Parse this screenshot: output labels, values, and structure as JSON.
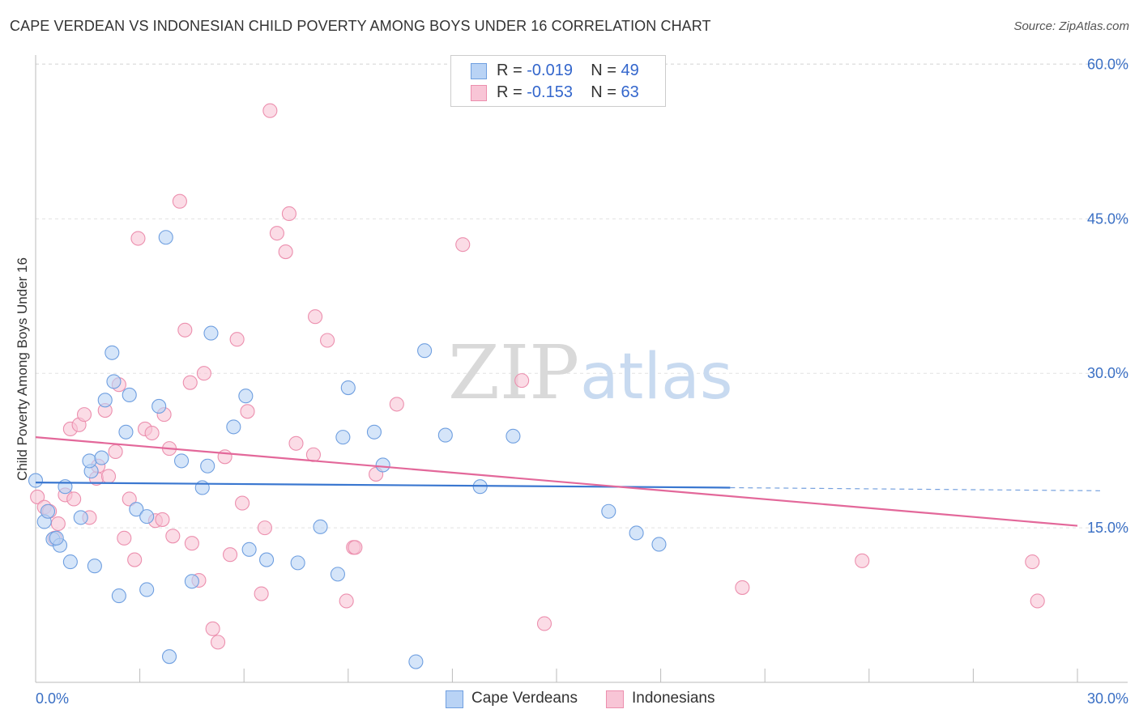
{
  "title": "CAPE VERDEAN VS INDONESIAN CHILD POVERTY AMONG BOYS UNDER 16 CORRELATION CHART",
  "source": "Source: ZipAtlas.com",
  "watermark": {
    "zip": "ZIP",
    "atlas": "atlas"
  },
  "colors": {
    "blue_fill": "#b9d3f5",
    "blue_stroke": "#6f9fe0",
    "blue_line": "#3a77d0",
    "pink_fill": "#f8c5d6",
    "pink_stroke": "#ec8fae",
    "pink_line": "#e3689a",
    "tick_text": "#3a6fc4"
  },
  "legend": [
    {
      "r_label": "R = ",
      "r_value": "-0.019",
      "n_label": "N = ",
      "n_value": "49"
    },
    {
      "r_label": "R = ",
      "r_value": "-0.153",
      "n_label": "N = ",
      "n_value": "63"
    }
  ],
  "bottom_legend": [
    "Cape Verdeans",
    "Indonesians"
  ],
  "chart_data": {
    "type": "scatter",
    "title": "CAPE VERDEAN VS INDONESIAN CHILD POVERTY AMONG BOYS UNDER 16 CORRELATION CHART",
    "xlabel": "",
    "ylabel": "Child Poverty Among Boys Under 16",
    "xlim": [
      0,
      30
    ],
    "ylim": [
      0,
      60
    ],
    "x_tick_labels": [
      "0.0%",
      "30.0%"
    ],
    "y_ticks": [
      15,
      30,
      45,
      60
    ],
    "y_tick_labels": [
      "15.0%",
      "30.0%",
      "45.0%",
      "60.0%"
    ],
    "grid": true,
    "legend_position": "top-center",
    "series": [
      {
        "name": "Cape Verdeans",
        "r": -0.019,
        "n": 49,
        "trend": {
          "x0": 0,
          "y0": 19.4,
          "x1": 20.0,
          "y1": 18.9,
          "dashed_to_x": 30,
          "dashed_to_y": 18.6
        },
        "points": [
          [
            0.0,
            19.6
          ],
          [
            0.25,
            15.6
          ],
          [
            0.35,
            16.6
          ],
          [
            0.5,
            13.9
          ],
          [
            0.7,
            13.3
          ],
          [
            0.6,
            14.0
          ],
          [
            0.85,
            19.0
          ],
          [
            1.0,
            11.7
          ],
          [
            1.3,
            16.0
          ],
          [
            1.6,
            20.5
          ],
          [
            1.7,
            11.3
          ],
          [
            1.55,
            21.5
          ],
          [
            1.9,
            21.8
          ],
          [
            2.0,
            27.4
          ],
          [
            2.2,
            32.0
          ],
          [
            2.25,
            29.2
          ],
          [
            2.4,
            8.4
          ],
          [
            2.6,
            24.3
          ],
          [
            2.7,
            27.9
          ],
          [
            2.9,
            16.8
          ],
          [
            3.2,
            16.1
          ],
          [
            3.2,
            9.0
          ],
          [
            3.55,
            26.8
          ],
          [
            3.75,
            43.2
          ],
          [
            3.85,
            2.5
          ],
          [
            4.2,
            21.5
          ],
          [
            4.5,
            9.8
          ],
          [
            4.8,
            18.9
          ],
          [
            4.95,
            21.0
          ],
          [
            5.05,
            33.9
          ],
          [
            5.7,
            24.8
          ],
          [
            6.15,
            12.9
          ],
          [
            6.05,
            27.8
          ],
          [
            6.65,
            11.9
          ],
          [
            7.55,
            11.6
          ],
          [
            8.2,
            15.1
          ],
          [
            8.7,
            10.5
          ],
          [
            8.85,
            23.8
          ],
          [
            9.0,
            28.6
          ],
          [
            9.75,
            24.3
          ],
          [
            10.0,
            21.1
          ],
          [
            10.95,
            2.0
          ],
          [
            11.2,
            32.2
          ],
          [
            11.8,
            24.0
          ],
          [
            12.8,
            19.0
          ],
          [
            13.75,
            23.9
          ],
          [
            16.5,
            16.6
          ],
          [
            17.3,
            14.5
          ],
          [
            17.95,
            13.4
          ]
        ]
      },
      {
        "name": "Indonesians",
        "r": -0.153,
        "n": 63,
        "trend": {
          "x0": 0,
          "y0": 23.8,
          "x1": 30,
          "y1": 15.2
        },
        "points": [
          [
            0.05,
            18.0
          ],
          [
            0.25,
            17.0
          ],
          [
            0.4,
            16.6
          ],
          [
            0.55,
            14.0
          ],
          [
            0.65,
            15.4
          ],
          [
            0.85,
            18.2
          ],
          [
            1.0,
            24.6
          ],
          [
            1.1,
            17.8
          ],
          [
            1.25,
            25.0
          ],
          [
            1.4,
            26.0
          ],
          [
            1.55,
            16.0
          ],
          [
            1.75,
            19.8
          ],
          [
            1.8,
            21.0
          ],
          [
            2.0,
            26.4
          ],
          [
            2.1,
            20.0
          ],
          [
            2.3,
            22.4
          ],
          [
            2.4,
            28.9
          ],
          [
            2.55,
            14.0
          ],
          [
            2.7,
            17.8
          ],
          [
            2.85,
            11.9
          ],
          [
            2.95,
            43.1
          ],
          [
            3.15,
            24.6
          ],
          [
            3.35,
            24.2
          ],
          [
            3.45,
            15.7
          ],
          [
            3.65,
            15.8
          ],
          [
            3.7,
            26.0
          ],
          [
            3.85,
            22.7
          ],
          [
            3.95,
            14.2
          ],
          [
            4.15,
            46.7
          ],
          [
            4.3,
            34.2
          ],
          [
            4.45,
            29.1
          ],
          [
            4.5,
            13.5
          ],
          [
            4.7,
            9.9
          ],
          [
            4.85,
            30.0
          ],
          [
            5.1,
            5.2
          ],
          [
            5.25,
            3.9
          ],
          [
            5.45,
            21.9
          ],
          [
            5.6,
            12.4
          ],
          [
            5.8,
            33.3
          ],
          [
            5.95,
            17.4
          ],
          [
            6.1,
            26.3
          ],
          [
            6.5,
            8.6
          ],
          [
            6.6,
            15.0
          ],
          [
            6.75,
            55.5
          ],
          [
            6.95,
            43.6
          ],
          [
            7.2,
            41.8
          ],
          [
            7.3,
            45.5
          ],
          [
            7.5,
            23.2
          ],
          [
            8.0,
            22.1
          ],
          [
            8.05,
            35.5
          ],
          [
            8.4,
            33.2
          ],
          [
            8.95,
            7.9
          ],
          [
            9.15,
            13.1
          ],
          [
            9.2,
            13.1
          ],
          [
            9.8,
            20.2
          ],
          [
            10.4,
            27.0
          ],
          [
            12.3,
            42.5
          ],
          [
            14.0,
            29.3
          ],
          [
            14.65,
            5.7
          ],
          [
            20.35,
            9.2
          ],
          [
            23.8,
            11.8
          ],
          [
            28.7,
            11.7
          ],
          [
            28.85,
            7.9
          ]
        ]
      }
    ]
  }
}
